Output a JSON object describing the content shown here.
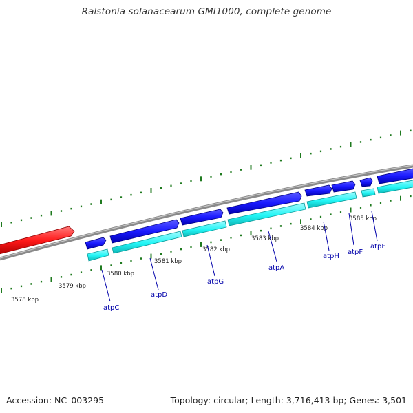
{
  "header": {
    "title": "Ralstonia solanacearum GMI1000, complete genome"
  },
  "footer": {
    "accession": "Accession: NC_003295",
    "summary": "Topology: circular; Length: 3,716,413 bp; Genes: 3,501"
  },
  "colors": {
    "background": "#ffffff",
    "backbone": "#8a8a8a",
    "ticks": "#1f7a1f",
    "forward_cds": "#1a1aff",
    "forward_cds_edge": "#000080",
    "gene_track": "#22f5f5",
    "gene_track_edge": "#0a9a9a",
    "highlight_feature": "#ff1a1a",
    "gene_label": "#0000aa",
    "kbp_label": "#222222"
  },
  "kbp_labels": [
    "3578 kbp",
    "3579 kbp",
    "3580 kbp",
    "3581 kbp",
    "3582 kbp",
    "3583 kbp",
    "3584 kbp",
    "3585 kbp"
  ],
  "genes": [
    "atpC",
    "atpD",
    "atpG",
    "atpA",
    "atpH",
    "atpF",
    "atpE"
  ]
}
